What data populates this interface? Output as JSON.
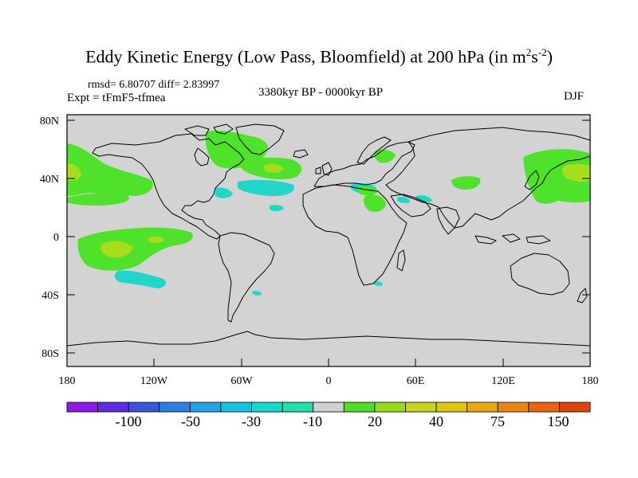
{
  "title": {
    "main": "Eddy Kinetic Energy (Low Pass, Bloomfield) at 200 hPa (in m",
    "sup1": "2",
    "mid": "s",
    "sup2": "-2",
    "end": ")"
  },
  "stats": "rmsd= 6.80707 diff= 2.83997",
  "expt": "Expt = tFmF5-tfmea",
  "period": "3380kyr BP - 0000kyr BP",
  "season": "DJF",
  "axes": {
    "lat_ticks": [
      "80N",
      "40N",
      "0",
      "40S",
      "80S"
    ],
    "lon_ticks": [
      "180",
      "120W",
      "60W",
      "0",
      "60E",
      "120E",
      "180"
    ]
  },
  "colorbar": {
    "colors": [
      "#8a1be8",
      "#5a2fe0",
      "#3a55dc",
      "#2a7fe0",
      "#1fa4e6",
      "#17c2e0",
      "#1ad8c8",
      "#20e0a8",
      "#d0d0d0",
      "#4fdc2a",
      "#9ad81e",
      "#c8d21a",
      "#e0c414",
      "#e8a814",
      "#ea8412",
      "#e86410",
      "#e0420e"
    ],
    "labels": [
      "-100",
      "-50",
      "-30",
      "-10",
      "20",
      "40",
      "75",
      "150"
    ]
  },
  "legend_colors": {
    "land_ocean": "#d3d3d3",
    "green": "#4fe22b",
    "yellow_green": "#a8dd1c",
    "cyan": "#1fd6c8",
    "coast": "#000000"
  }
}
